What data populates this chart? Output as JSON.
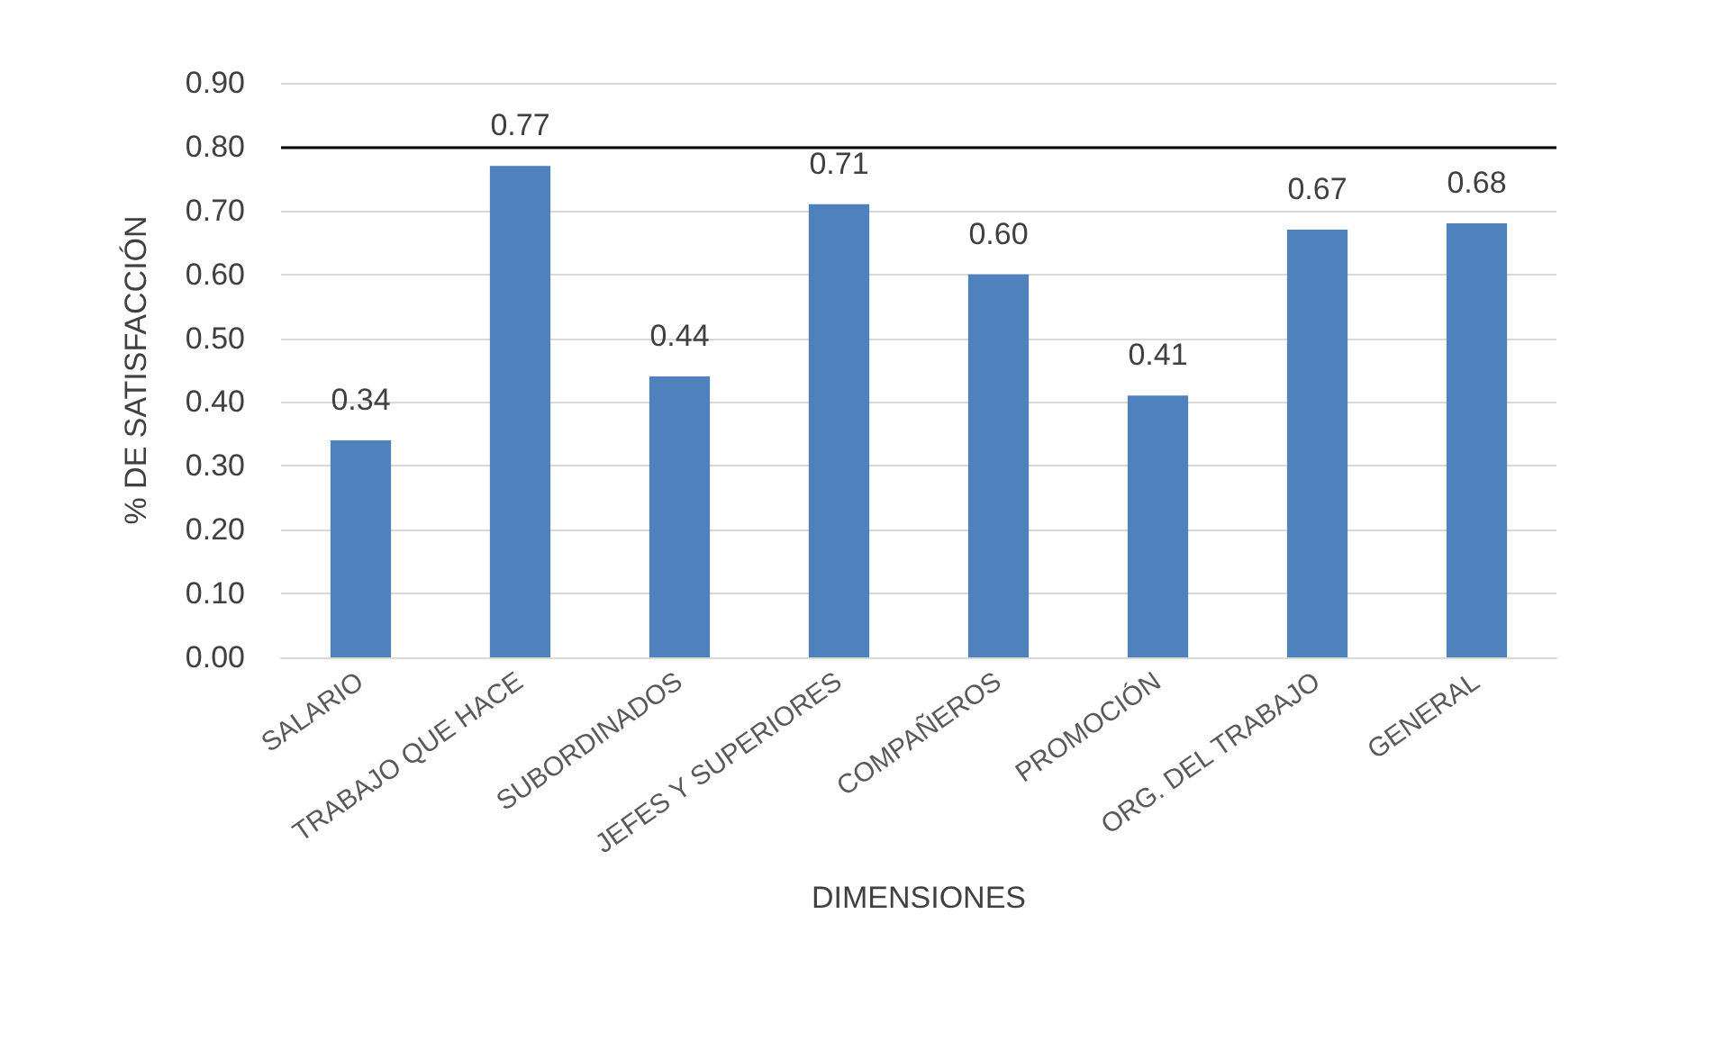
{
  "chart_data": {
    "type": "bar",
    "xlabel": "DIMENSIONES",
    "ylabel": "% DE SATISFACCIÓN",
    "categories": [
      "SALARIO",
      "TRABAJO QUE HACE",
      "SUBORDINADOS",
      "JEFES Y SUPERIORES",
      "COMPAÑEROS",
      "PROMOCIÓN",
      "ORG. DEL TRABAJO",
      "GENERAL"
    ],
    "values": [
      0.34,
      0.77,
      0.44,
      0.71,
      0.6,
      0.41,
      0.67,
      0.68
    ],
    "value_labels": [
      "0.34",
      "0.77",
      "0.44",
      "0.71",
      "0.60",
      "0.41",
      "0.67",
      "0.68"
    ],
    "color": "#4f81bd",
    "ylim": [
      0,
      0.9
    ],
    "yticks": [
      {
        "value": 0,
        "label": "0.00"
      },
      {
        "value": 0.1,
        "label": "0.10"
      },
      {
        "value": 0.2,
        "label": "0.20"
      },
      {
        "value": 0.3,
        "label": "0.30"
      },
      {
        "value": 0.4,
        "label": "0.40"
      },
      {
        "value": 0.5,
        "label": "0.50"
      },
      {
        "value": 0.6,
        "label": "0.60"
      },
      {
        "value": 0.7,
        "label": "0.70"
      },
      {
        "value": 0.8,
        "label": "0.80"
      },
      {
        "value": 0.9,
        "label": "0.90"
      }
    ],
    "ref_lines": [
      {
        "axis": "y",
        "value": 0.8,
        "color": "#000000"
      }
    ],
    "grid": "y"
  }
}
